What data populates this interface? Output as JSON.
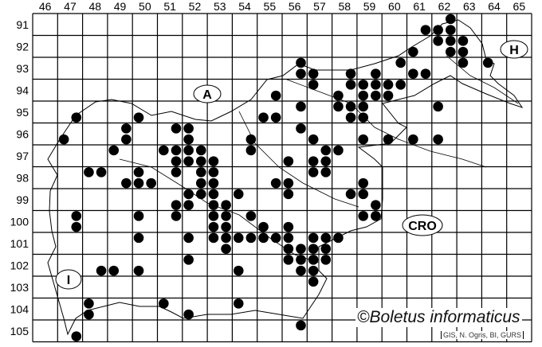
{
  "map": {
    "columns": [
      "46",
      "47",
      "48",
      "49",
      "50",
      "51",
      "52",
      "53",
      "54",
      "55",
      "56",
      "57",
      "58",
      "59",
      "60",
      "61",
      "62",
      "63",
      "64",
      "65"
    ],
    "rows": [
      "91",
      "92",
      "93",
      "94",
      "95",
      "96",
      "97",
      "98",
      "99",
      "100",
      "101",
      "102",
      "103",
      "104",
      "105"
    ],
    "country_labels": {
      "austria": "A",
      "hungary": "H",
      "croatia": "CRO",
      "italy": "I"
    },
    "copyright": "©Boletus informaticus",
    "credit": "GIS, N. Ogris, BI, GURS",
    "colors": {
      "dot": "#000000",
      "grid": "#000000",
      "border": "#000000"
    },
    "records": [
      [
        47.75,
        95.75
      ],
      [
        50.25,
        95.75
      ],
      [
        47.25,
        96.75
      ],
      [
        49.75,
        96.25
      ],
      [
        49.75,
        96.75
      ],
      [
        49.25,
        97.25
      ],
      [
        51.75,
        96.25
      ],
      [
        52.25,
        96.25
      ],
      [
        52.25,
        96.75
      ],
      [
        51.25,
        97.25
      ],
      [
        51.75,
        97.25
      ],
      [
        52.25,
        97.25
      ],
      [
        52.75,
        97.25
      ],
      [
        51.75,
        97.75
      ],
      [
        52.25,
        97.75
      ],
      [
        52.75,
        97.75
      ],
      [
        53.25,
        97.75
      ],
      [
        55.25,
        95.75
      ],
      [
        54.75,
        96.75
      ],
      [
        54.75,
        97.25
      ],
      [
        48.25,
        98.25
      ],
      [
        48.75,
        98.25
      ],
      [
        50.25,
        98.25
      ],
      [
        51.75,
        98.25
      ],
      [
        52.75,
        98.25
      ],
      [
        53.25,
        98.25
      ],
      [
        49.75,
        98.75
      ],
      [
        50.25,
        98.75
      ],
      [
        50.75,
        98.75
      ],
      [
        52.75,
        98.75
      ],
      [
        53.25,
        98.75
      ],
      [
        52.25,
        99.25
      ],
      [
        52.75,
        99.25
      ],
      [
        53.25,
        99.25
      ],
      [
        54.25,
        99.25
      ],
      [
        51.75,
        99.75
      ],
      [
        52.25,
        99.75
      ],
      [
        53.25,
        99.75
      ],
      [
        53.75,
        99.75
      ],
      [
        47.75,
        100.25
      ],
      [
        50.25,
        100.25
      ],
      [
        51.75,
        100.25
      ],
      [
        53.25,
        100.25
      ],
      [
        53.75,
        100.25
      ],
      [
        54.75,
        100.25
      ],
      [
        47.75,
        100.75
      ],
      [
        53.25,
        100.75
      ],
      [
        53.75,
        100.75
      ],
      [
        55.25,
        100.75
      ],
      [
        50.25,
        101.25
      ],
      [
        52.25,
        101.25
      ],
      [
        53.25,
        101.25
      ],
      [
        53.75,
        101.25
      ],
      [
        54.25,
        101.25
      ],
      [
        54.75,
        101.25
      ],
      [
        55.25,
        101.25
      ],
      [
        53.75,
        101.75
      ],
      [
        52.25,
        102.25
      ],
      [
        48.75,
        102.75
      ],
      [
        49.25,
        102.75
      ],
      [
        50.25,
        102.75
      ],
      [
        54.25,
        102.75
      ],
      [
        48.25,
        104.25
      ],
      [
        51.25,
        104.25
      ],
      [
        54.25,
        104.25
      ],
      [
        48.25,
        104.75
      ],
      [
        52.25,
        104.75
      ],
      [
        47.75,
        105.75
      ],
      [
        62.75,
        91.25
      ],
      [
        61.75,
        91.75
      ],
      [
        62.25,
        91.75
      ],
      [
        62.75,
        91.75
      ],
      [
        62.25,
        92.25
      ],
      [
        62.75,
        92.25
      ],
      [
        63.25,
        92.25
      ],
      [
        62.75,
        92.75
      ],
      [
        63.25,
        92.75
      ],
      [
        61.25,
        92.75
      ],
      [
        60.75,
        93.25
      ],
      [
        63.25,
        93.25
      ],
      [
        64.25,
        93.25
      ],
      [
        56.75,
        93.25
      ],
      [
        56.75,
        93.75
      ],
      [
        57.25,
        93.75
      ],
      [
        58.75,
        93.75
      ],
      [
        59.75,
        93.75
      ],
      [
        61.25,
        93.75
      ],
      [
        61.75,
        93.75
      ],
      [
        57.25,
        94.25
      ],
      [
        58.75,
        94.25
      ],
      [
        59.25,
        94.25
      ],
      [
        59.75,
        94.25
      ],
      [
        60.25,
        94.25
      ],
      [
        60.75,
        94.25
      ],
      [
        55.75,
        94.75
      ],
      [
        58.25,
        94.75
      ],
      [
        59.25,
        94.75
      ],
      [
        59.75,
        94.75
      ],
      [
        60.25,
        94.75
      ],
      [
        56.75,
        95.25
      ],
      [
        58.25,
        95.25
      ],
      [
        58.75,
        95.25
      ],
      [
        59.25,
        95.25
      ],
      [
        62.25,
        95.25
      ],
      [
        55.75,
        95.75
      ],
      [
        58.75,
        95.75
      ],
      [
        59.25,
        95.75
      ],
      [
        56.75,
        96.25
      ],
      [
        57.25,
        96.75
      ],
      [
        59.25,
        96.75
      ],
      [
        60.25,
        96.75
      ],
      [
        61.25,
        96.75
      ],
      [
        62.25,
        96.75
      ],
      [
        57.75,
        97.25
      ],
      [
        58.25,
        97.25
      ],
      [
        56.25,
        97.75
      ],
      [
        57.25,
        97.75
      ],
      [
        57.75,
        97.75
      ],
      [
        57.25,
        98.25
      ],
      [
        57.75,
        98.25
      ],
      [
        55.75,
        98.75
      ],
      [
        56.25,
        98.75
      ],
      [
        56.25,
        99.25
      ],
      [
        59.25,
        98.75
      ],
      [
        58.75,
        99.25
      ],
      [
        59.25,
        99.25
      ],
      [
        59.75,
        99.75
      ],
      [
        59.25,
        100.25
      ],
      [
        59.75,
        100.25
      ],
      [
        56.25,
        100.75
      ],
      [
        55.75,
        101.25
      ],
      [
        56.25,
        101.25
      ],
      [
        57.25,
        101.25
      ],
      [
        57.75,
        101.25
      ],
      [
        58.25,
        101.25
      ],
      [
        56.25,
        101.75
      ],
      [
        56.75,
        101.75
      ],
      [
        57.25,
        101.75
      ],
      [
        57.75,
        101.75
      ],
      [
        56.25,
        102.25
      ],
      [
        56.75,
        102.25
      ],
      [
        57.25,
        102.25
      ],
      [
        57.75,
        102.25
      ],
      [
        56.75,
        102.75
      ],
      [
        57.25,
        102.75
      ],
      [
        57.25,
        103.25
      ],
      [
        56.75,
        105.25
      ]
    ]
  }
}
